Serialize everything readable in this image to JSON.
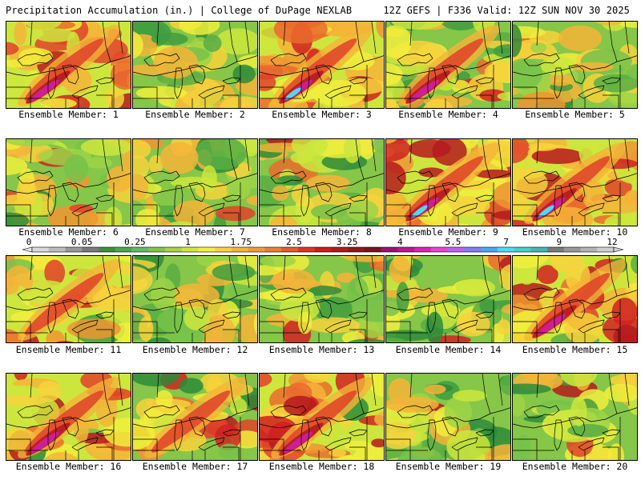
{
  "header": {
    "title": "Precipitation Accumulation (in.) | College of DuPage NEXLAB",
    "run_info": "12Z GEFS | F336 Valid: 12Z SUN NOV 30 2025"
  },
  "colorbar": {
    "labels": [
      "0",
      "0.05",
      "0.25",
      "1",
      "1.75",
      "2.5",
      "3.25",
      "4",
      "5.5",
      "7",
      "9",
      "12"
    ],
    "colors": [
      "#d9d9d9",
      "#bdbdbd",
      "#999999",
      "#7a7a7a",
      "#3d8f3d",
      "#4ea64e",
      "#66b866",
      "#84c44a",
      "#a8d43f",
      "#cfe83a",
      "#f2f23a",
      "#fad43a",
      "#f7b734",
      "#f29d31",
      "#ee7d2f",
      "#ea5a2c",
      "#e33325",
      "#d41a1a",
      "#b8171a",
      "#96141a",
      "#80101a",
      "#a0106e",
      "#c21390",
      "#de20b4",
      "#f03fd2",
      "#c060f0",
      "#7d7df5",
      "#4aa7f5",
      "#45e0f0",
      "#3ad6c8",
      "#45b5b5",
      "#7a7a7a",
      "#999999",
      "#b4b4b4",
      "#cfcfcf"
    ]
  },
  "panels": [
    {
      "caption": "Ensemble Member: 1",
      "intensity": 0.85,
      "plume": "magenta"
    },
    {
      "caption": "Ensemble Member: 2",
      "intensity": 0.35,
      "plume": "none"
    },
    {
      "caption": "Ensemble Member: 3",
      "intensity": 0.8,
      "plume": "cyan"
    },
    {
      "caption": "Ensemble Member: 4",
      "intensity": 0.55,
      "plume": "magenta"
    },
    {
      "caption": "Ensemble Member: 5",
      "intensity": 0.45,
      "plume": "none"
    },
    {
      "caption": "Ensemble Member: 6",
      "intensity": 0.5,
      "plume": "none"
    },
    {
      "caption": "Ensemble Member: 7",
      "intensity": 0.4,
      "plume": "none"
    },
    {
      "caption": "Ensemble Member: 8",
      "intensity": 0.45,
      "plume": "none"
    },
    {
      "caption": "Ensemble Member: 9",
      "intensity": 0.85,
      "plume": "cyan"
    },
    {
      "caption": "Ensemble Member: 10",
      "intensity": 0.8,
      "plume": "cyan"
    },
    {
      "caption": "Ensemble Member: 11",
      "intensity": 0.65,
      "plume": "none"
    },
    {
      "caption": "Ensemble Member: 12",
      "intensity": 0.35,
      "plume": "none"
    },
    {
      "caption": "Ensemble Member: 13",
      "intensity": 0.45,
      "plume": "none"
    },
    {
      "caption": "Ensemble Member: 14",
      "intensity": 0.4,
      "plume": "none"
    },
    {
      "caption": "Ensemble Member: 15",
      "intensity": 0.75,
      "plume": "magenta"
    },
    {
      "caption": "Ensemble Member: 16",
      "intensity": 0.75,
      "plume": "magenta"
    },
    {
      "caption": "Ensemble Member: 17",
      "intensity": 0.6,
      "plume": "none"
    },
    {
      "caption": "Ensemble Member: 18",
      "intensity": 0.75,
      "plume": "magenta"
    },
    {
      "caption": "Ensemble Member: 19",
      "intensity": 0.4,
      "plume": "none"
    },
    {
      "caption": "Ensemble Member: 20",
      "intensity": 0.5,
      "plume": "none"
    }
  ]
}
